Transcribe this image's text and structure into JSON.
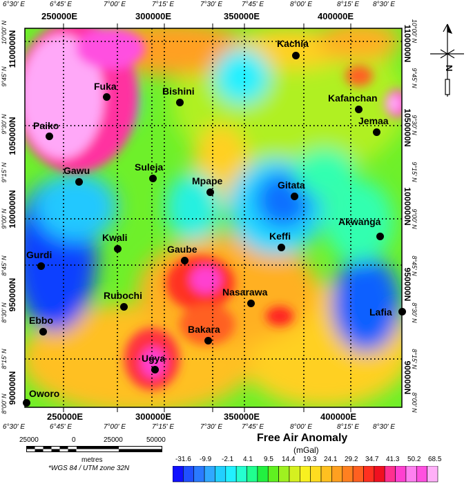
{
  "map": {
    "top_lonlat": [
      "6°30' E",
      "6°45' E",
      "7°00' E",
      "7°15' E",
      "7°30' E",
      "7°45' E",
      "8°00' E",
      "8°15' E",
      "8°30' E"
    ],
    "bottom_lonlat": [
      "6°30' E",
      "6°45' E",
      "7°00' E",
      "7°15' E",
      "7°30' E",
      "7°45' E",
      "8°00' E",
      "8°15' E",
      "8°30' E"
    ],
    "top_utm": [
      "250000E",
      "300000E",
      "350000E",
      "400000E"
    ],
    "bottom_utm": [
      "250000E",
      "300000E",
      "350000E",
      "400000E"
    ],
    "left_lat": [
      "10°00' N",
      "9°45' N",
      "9°30' N",
      "9°15' N",
      "9°00' N",
      "8°45' N",
      "8°30' N",
      "8°15' N",
      "8°00' N"
    ],
    "left_utm": [
      "1100000N",
      "1050000N",
      "1000000N",
      "950000N",
      "900000N"
    ],
    "right_lat": [
      "10°00' N",
      "9°45' N",
      "9°30' N",
      "9°15' N",
      "9°00' N",
      "8°45' N",
      "8°30' N",
      "8°15' N",
      "8°00' N"
    ],
    "right_utm": [
      "1100000N",
      "1050000N",
      "1000000N",
      "950000N",
      "900000N"
    ]
  },
  "towns": [
    {
      "name": "Kachia"
    },
    {
      "name": "Fuka"
    },
    {
      "name": "Bishini"
    },
    {
      "name": "Kafanchan"
    },
    {
      "name": "Paiko"
    },
    {
      "name": "Jemaa"
    },
    {
      "name": "Gawu"
    },
    {
      "name": "Suleja"
    },
    {
      "name": "Mpape"
    },
    {
      "name": "Gitata"
    },
    {
      "name": "Akwanga"
    },
    {
      "name": "Kwali"
    },
    {
      "name": "Keffi"
    },
    {
      "name": "Gurdi"
    },
    {
      "name": "Gaube"
    },
    {
      "name": "Rubochi"
    },
    {
      "name": "Nasarawa"
    },
    {
      "name": "Lafia"
    },
    {
      "name": "Ebbo"
    },
    {
      "name": "Bakara"
    },
    {
      "name": "Ugya"
    },
    {
      "name": "Oworo"
    }
  ],
  "legend": {
    "title": "Free Air Anomaly",
    "unit": "(mGal)",
    "ticks": [
      "-31.6",
      "-9.9",
      "-2.1",
      "4.1",
      "9.5",
      "14.4",
      "19.3",
      "24.1",
      "29.2",
      "34.7",
      "41.3",
      "50.2",
      "68.5"
    ],
    "colors": [
      "#1010ff",
      "#2050ff",
      "#2a7aff",
      "#30a8ff",
      "#22d0ff",
      "#22f0ff",
      "#25ffd0",
      "#20ff90",
      "#22f040",
      "#60f020",
      "#9ff020",
      "#d5f020",
      "#f8f020",
      "#ffdc20",
      "#ffc020",
      "#ffa020",
      "#ff8020",
      "#ff6020",
      "#ff3020",
      "#f01020",
      "#ff3090",
      "#ff40d0",
      "#ff80f0",
      "#ff50e0",
      "#ffb0f8"
    ]
  },
  "scale": {
    "labels": [
      "25000",
      "0",
      "25000",
      "50000"
    ],
    "unit": "metres",
    "datum": "*WGS 84 / UTM zone 32N"
  },
  "compass": {
    "label": "N"
  }
}
